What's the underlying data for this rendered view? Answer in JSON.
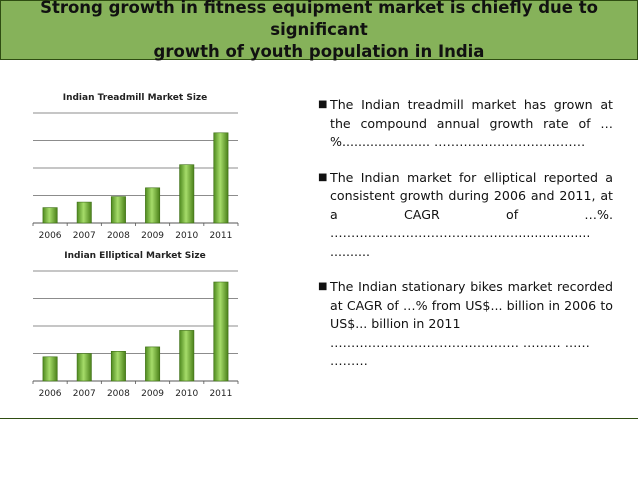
{
  "header": {
    "title": "Strong growth in fitness equipment market is chiefly due to significant\ngrowth of youth population in India"
  },
  "chart_data": [
    {
      "type": "bar",
      "title": "Indian Treadmill Market Size",
      "categories": [
        "2006",
        "2007",
        "2008",
        "2009",
        "2010",
        "2011"
      ],
      "values": [
        14,
        19,
        24,
        32,
        53,
        82
      ],
      "ylim": [
        0,
        100
      ],
      "grid": true,
      "xlabel": "",
      "ylabel": "",
      "bar_color": "#7fbf3f"
    },
    {
      "type": "bar",
      "title": "Indian Elliptical Market Size",
      "categories": [
        "2006",
        "2007",
        "2008",
        "2009",
        "2010",
        "2011"
      ],
      "values": [
        22,
        25,
        27,
        31,
        46,
        90
      ],
      "ylim": [
        0,
        100
      ],
      "grid": true,
      "xlabel": "",
      "ylabel": "",
      "bar_color": "#7fbf3f"
    }
  ],
  "bullets": [
    {
      "text": "The Indian treadmill market has grown at the compound annual growth rate of …%......................  ………………………………"
    },
    {
      "text": "The Indian market for elliptical reported a consistent growth during 2006 and 2011, at a CAGR of …%. ……………………………….…..…..................\n.........."
    },
    {
      "text": "The Indian stationary bikes market recorded at CAGR of …% from US$... billion in 2006 to US$... billion  in 2011\n………………………………………  ………  ……\n………"
    }
  ],
  "icons": {
    "bullet": "square-bullet-icon"
  },
  "colors": {
    "header_bg": "#86b25a",
    "border": "#2f4d12",
    "bar": "#7fbf3f"
  }
}
